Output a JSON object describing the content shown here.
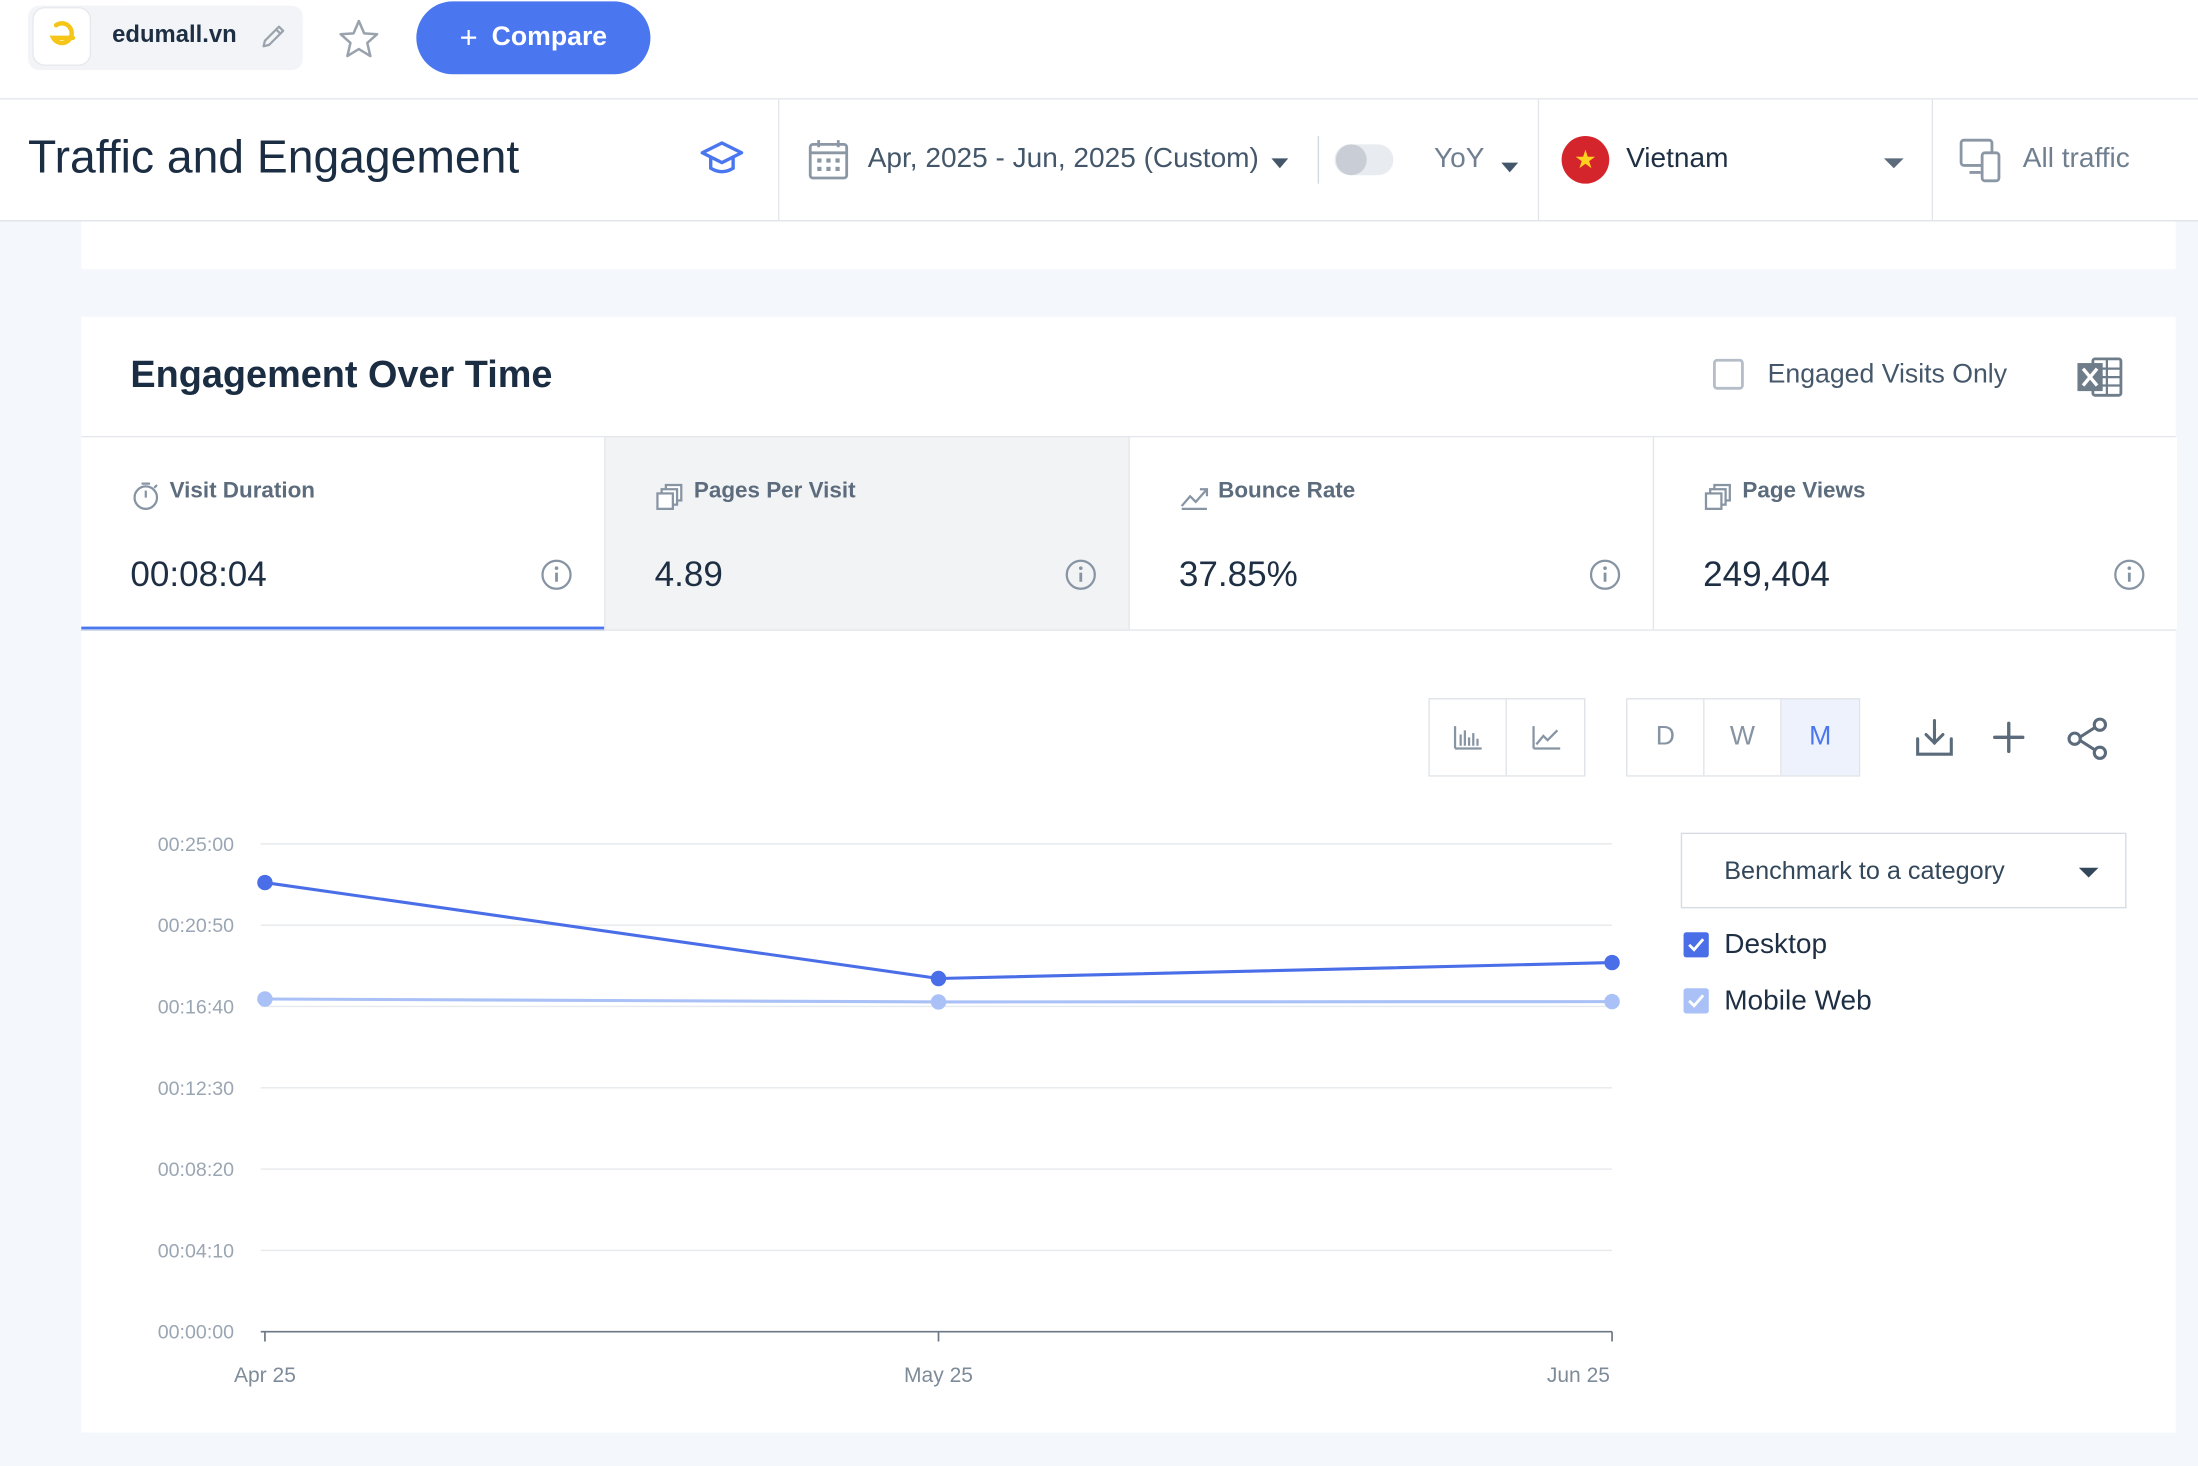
{
  "site": {
    "name": "edumall.vn"
  },
  "compare_label": "Compare",
  "header": {
    "title": "Traffic and Engagement",
    "date_range": "Apr, 2025 - Jun, 2025 (Custom)",
    "comparison": "YoY",
    "country": "Vietnam",
    "traffic": "All traffic"
  },
  "card": {
    "title": "Engagement Over Time",
    "engaged_only_label": "Engaged Visits Only"
  },
  "metrics": [
    {
      "name": "Visit Duration",
      "value": "00:08:04",
      "icon": "stopwatch-icon",
      "active": true
    },
    {
      "name": "Pages Per Visit",
      "value": "4.89",
      "icon": "pages-icon",
      "selected": true
    },
    {
      "name": "Bounce Rate",
      "value": "37.85%",
      "icon": "trend-icon"
    },
    {
      "name": "Page Views",
      "value": "249,404",
      "icon": "pages-icon"
    }
  ],
  "granularity": [
    "D",
    "W",
    "M"
  ],
  "granularity_selected": "M",
  "benchmark_label": "Benchmark to a category",
  "colors": {
    "accent": "#4a76f0",
    "desktop": "#4a6ee8",
    "mobile": "#a9c1f6"
  },
  "chart_data": {
    "type": "line",
    "x": [
      "Apr 25",
      "May 25",
      "Jun 25"
    ],
    "y_ticks": [
      "00:00:00",
      "00:04:10",
      "00:08:20",
      "00:12:30",
      "00:16:40",
      "00:20:50",
      "00:25:00"
    ],
    "ylim": [
      0,
      1500
    ],
    "series": [
      {
        "name": "Desktop",
        "values": [
          1381,
          1086,
          1135
        ]
      },
      {
        "name": "Mobile Web",
        "values": [
          1023,
          1014,
          1015
        ]
      }
    ]
  }
}
